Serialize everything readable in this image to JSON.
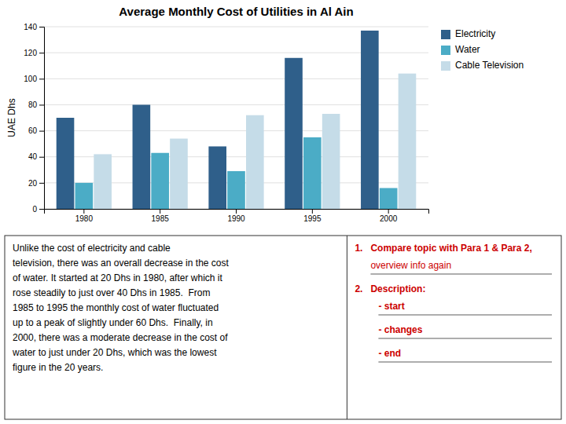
{
  "chart_data": {
    "type": "bar",
    "title": "Average Monthly Cost of Utilities in Al Ain",
    "ylabel": "UAE Dhs",
    "categories": [
      "1980",
      "1985",
      "1990",
      "1995",
      "2000"
    ],
    "series": [
      {
        "name": "Electricity",
        "color": "#2F5F8A",
        "values": [
          70,
          80,
          48,
          116,
          137
        ]
      },
      {
        "name": "Water",
        "color": "#4BACC6",
        "values": [
          20,
          43,
          29,
          55,
          16
        ]
      },
      {
        "name": "Cable Television",
        "color": "#C5DCE8",
        "values": [
          42,
          54,
          72,
          73,
          104
        ]
      }
    ],
    "ylim": [
      0,
      140
    ],
    "yticks": [
      0,
      20,
      40,
      60,
      80,
      100,
      120,
      140
    ],
    "grid": true,
    "legend": "upper right",
    "annotations": [
      "Unlike the cost of electricity and cable\ntelevision, there was an overall decrease in the cost\nof water. It started at 20 Dhs in 1980, after which it\nrose steadily to just over 40 Dhs in 1985.  From\n1985 to 1995 the monthly cost of water fluctuated\nup to a peak of slightly under 60 Dhs.  Finally, in\n2000, there was a moderate decrease in the cost of\nwater to just under 20 Dhs, which was the lowest\nfigure in the 20 years.",
      "1.",
      "Compare topic with Para 1 & Para 2,",
      "overview info again",
      "2.",
      "Description:",
      "- start",
      "- changes",
      "- end"
    ]
  }
}
